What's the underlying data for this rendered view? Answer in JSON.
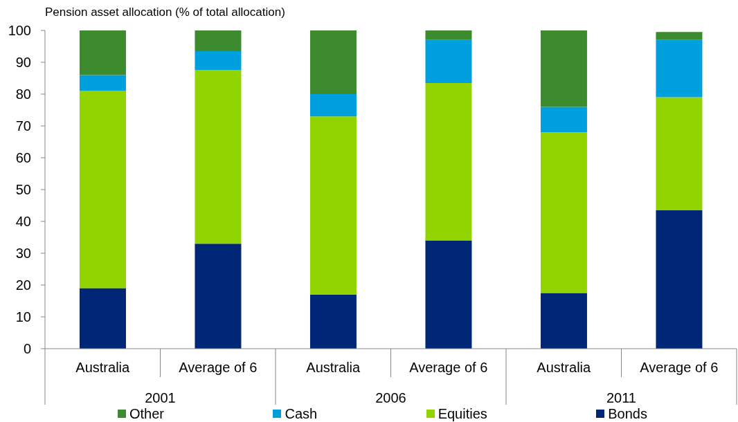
{
  "chart_data": {
    "type": "bar",
    "ylabel": "Pension asset allocation (% of total allocation)",
    "categories": [
      "Australia",
      "Average of 6",
      "Australia",
      "Average of 6",
      "Australia",
      "Average of 6"
    ],
    "annotations": [
      "2001",
      "2006",
      "2011"
    ],
    "stacked": true,
    "series": [
      {
        "name": "Bonds",
        "color": "#002776",
        "values": [
          19,
          33,
          17,
          34,
          17.5,
          43.5
        ]
      },
      {
        "name": "Equities",
        "color": "#92d400",
        "values": [
          62,
          54.5,
          56,
          49.5,
          50.5,
          35.5
        ]
      },
      {
        "name": "Cash",
        "color": "#00a0df",
        "values": [
          5,
          6,
          7,
          13.5,
          8,
          18
        ]
      },
      {
        "name": "Other",
        "color": "#3d8b2f",
        "values": [
          14,
          6.5,
          20,
          3,
          24,
          2.5
        ]
      }
    ],
    "ylim": [
      0,
      100
    ],
    "yticks": [
      0,
      10,
      20,
      30,
      40,
      50,
      60,
      70,
      80,
      90,
      100
    ],
    "legend": "bottom"
  }
}
